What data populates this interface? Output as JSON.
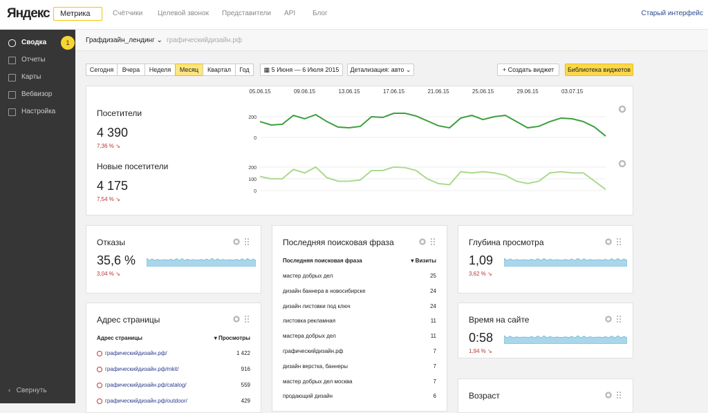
{
  "header": {
    "logo": "Яндекс",
    "product": "Метрика",
    "nav": [
      "Счётчики",
      "Целевой звонок",
      "Представители",
      "API",
      "Блог"
    ],
    "old_ui": "Старый интерфейс"
  },
  "sidebar": {
    "items": [
      "Сводка",
      "Отчеты",
      "Карты",
      "Вебвизор",
      "Настройка"
    ],
    "badge": "1",
    "collapse": "Свернуть"
  },
  "subheader": {
    "counter": "Графдизайн_лендинг",
    "site": "графическийдизайн.рф"
  },
  "toolbar": {
    "periods": [
      "Сегодня",
      "Вчера",
      "Неделя",
      "Месяц",
      "Квартал",
      "Год"
    ],
    "date_range": "5 Июня — 6 Июля 2015",
    "detail": "Детализация: авто",
    "create": "Создать виджет",
    "library": "Библиотека виджетов"
  },
  "chart_data": [
    {
      "type": "line",
      "title": "Посетители",
      "total": "4 390",
      "change": "7,36 % ↘",
      "categories": [
        "05.06.15",
        null,
        null,
        null,
        "09.06.15",
        null,
        null,
        null,
        "13.06.15",
        null,
        null,
        null,
        "17.06.15",
        null,
        null,
        null,
        "21.06.15",
        null,
        null,
        null,
        "25.06.15",
        null,
        null,
        null,
        "29.06.15",
        null,
        null,
        null,
        "03.07.15",
        null,
        null,
        null
      ],
      "series": [
        {
          "name": "Посетители",
          "color": "#3a9e3a",
          "values": [
            153,
            120,
            127,
            213,
            180,
            220,
            153,
            100,
            93,
            107,
            200,
            193,
            233,
            233,
            207,
            160,
            113,
            93,
            187,
            213,
            173,
            200,
            213,
            153,
            93,
            107,
            153,
            187,
            180,
            153,
            100,
            13
          ]
        }
      ],
      "ylim": [
        0,
        260
      ],
      "yticks": [
        0,
        200
      ]
    },
    {
      "type": "line",
      "title": "Новые посетители",
      "total": "4 175",
      "change": "7,54 % ↘",
      "series": [
        {
          "name": "Новые посетители",
          "color": "#a9d98c",
          "values": [
            120,
            100,
            100,
            180,
            150,
            200,
            110,
            80,
            80,
            90,
            170,
            170,
            200,
            195,
            170,
            100,
            60,
            50,
            160,
            150,
            160,
            150,
            130,
            80,
            60,
            80,
            150,
            160,
            150,
            150,
            80,
            10
          ]
        }
      ],
      "ylim": [
        0,
        240
      ],
      "yticks": [
        0,
        100,
        200
      ]
    }
  ],
  "widgets": {
    "bounce": {
      "title": "Отказы",
      "value": "35,6 %",
      "change": "3,04 % ↘"
    },
    "depth": {
      "title": "Глубина просмотра",
      "value": "1,09",
      "change": "3,62 % ↘"
    },
    "time": {
      "title": "Время на сайте",
      "value": "0:58",
      "change": "1,94 % ↘"
    },
    "age": {
      "title": "Возраст"
    }
  },
  "search_table": {
    "title": "Последняя поисковая фраза",
    "columns": [
      "Последняя поисковая фраза",
      "▾ Визиты"
    ],
    "rows": [
      [
        "мастер добрых дел",
        25
      ],
      [
        "дизайн баннера в новосибирске",
        24
      ],
      [
        "дизайн листовки под ключ",
        24
      ],
      [
        "листовка рекламная",
        11
      ],
      [
        "мастера добрых дел",
        11
      ],
      [
        "графическийдизайн.рф",
        7
      ],
      [
        "дизайн верстка, баннеры",
        7
      ],
      [
        "мастер добрых дел москва",
        7
      ],
      [
        "продающий дизайн",
        6
      ]
    ]
  },
  "pages_table": {
    "title": "Адрес страницы",
    "columns": [
      "Адрес страницы",
      "▾ Просмотры"
    ],
    "rows": [
      [
        "графическийдизайн.рф/",
        "1 422"
      ],
      [
        "графическийдизайн.рф/mkit/",
        916
      ],
      [
        "графическийдизайн.рф/catalog/",
        559
      ],
      [
        "графическийдизайн.рф/outdoor/",
        429
      ]
    ]
  }
}
